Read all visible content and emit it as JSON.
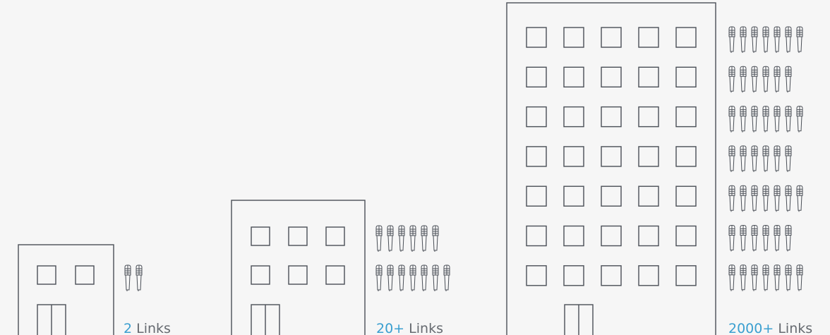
{
  "labels": [
    {
      "number": "2",
      "unit": "Links"
    },
    {
      "number": "20+",
      "unit": "Links"
    },
    {
      "number": "2000+",
      "unit": "Links"
    }
  ]
}
